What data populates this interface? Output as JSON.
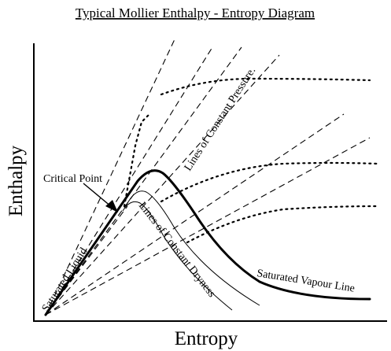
{
  "title": "Typical Mollier Enthalpy - Entropy Diagram",
  "x_axis_label": "Entropy",
  "y_axis_label": "Enthalpy",
  "labels": {
    "critical_point": "Critical Point",
    "saturated_liquid": "Saturated Liquid",
    "constant_pressure": "Lines of Constant Pressure.",
    "constant_dryness": "Lines of Constant Dryness",
    "saturated_vapour": "Saturated Vapour Line"
  },
  "colors": {
    "ink": "#000000",
    "background": "#ffffff"
  }
}
